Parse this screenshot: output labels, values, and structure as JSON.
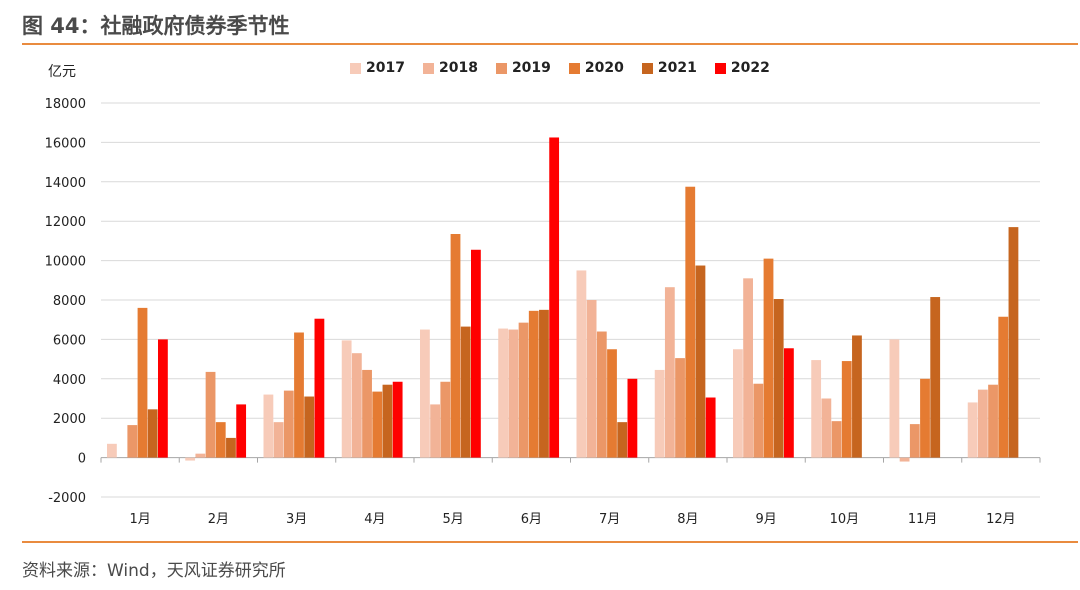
{
  "header": {
    "title": "图 44：社融政府债券季节性"
  },
  "footer": {
    "source": "资料来源：Wind，天风证券研究所"
  },
  "chart_data": {
    "type": "bar",
    "title": "",
    "ylabel": "亿元",
    "xlabel": "",
    "ylim": [
      -2000,
      18000
    ],
    "yticks": [
      -2000,
      0,
      2000,
      4000,
      6000,
      8000,
      10000,
      12000,
      14000,
      16000,
      18000
    ],
    "grid": true,
    "legend_position": "top",
    "categories": [
      "1月",
      "2月",
      "3月",
      "4月",
      "5月",
      "6月",
      "7月",
      "8月",
      "9月",
      "10月",
      "11月",
      "12月"
    ],
    "series": [
      {
        "name": "2017",
        "color": "#f7cbb9",
        "values": [
          700,
          -150,
          3200,
          5950,
          6500,
          6550,
          9500,
          4450,
          5500,
          4950,
          6000,
          2800
        ]
      },
      {
        "name": "2018",
        "color": "#f2b397",
        "values": [
          null,
          200,
          1800,
          5300,
          2700,
          6500,
          8000,
          8650,
          9100,
          3000,
          -200,
          3450
        ]
      },
      {
        "name": "2019",
        "color": "#eb9767",
        "values": [
          1650,
          4350,
          3400,
          4450,
          3850,
          6850,
          6400,
          5050,
          3750,
          1850,
          1700,
          3700
        ]
      },
      {
        "name": "2020",
        "color": "#e57b32",
        "values": [
          7600,
          1800,
          6350,
          3350,
          11350,
          7450,
          5500,
          13750,
          10100,
          4900,
          4000,
          7150
        ]
      },
      {
        "name": "2021",
        "color": "#c6651f",
        "values": [
          2450,
          1000,
          3100,
          3700,
          6650,
          7500,
          1800,
          9750,
          8050,
          6200,
          8150,
          11700
        ]
      },
      {
        "name": "2022",
        "color": "#ff0000",
        "values": [
          6000,
          2700,
          7050,
          3850,
          10550,
          16250,
          4000,
          3050,
          5550,
          null,
          null,
          null
        ]
      }
    ]
  }
}
